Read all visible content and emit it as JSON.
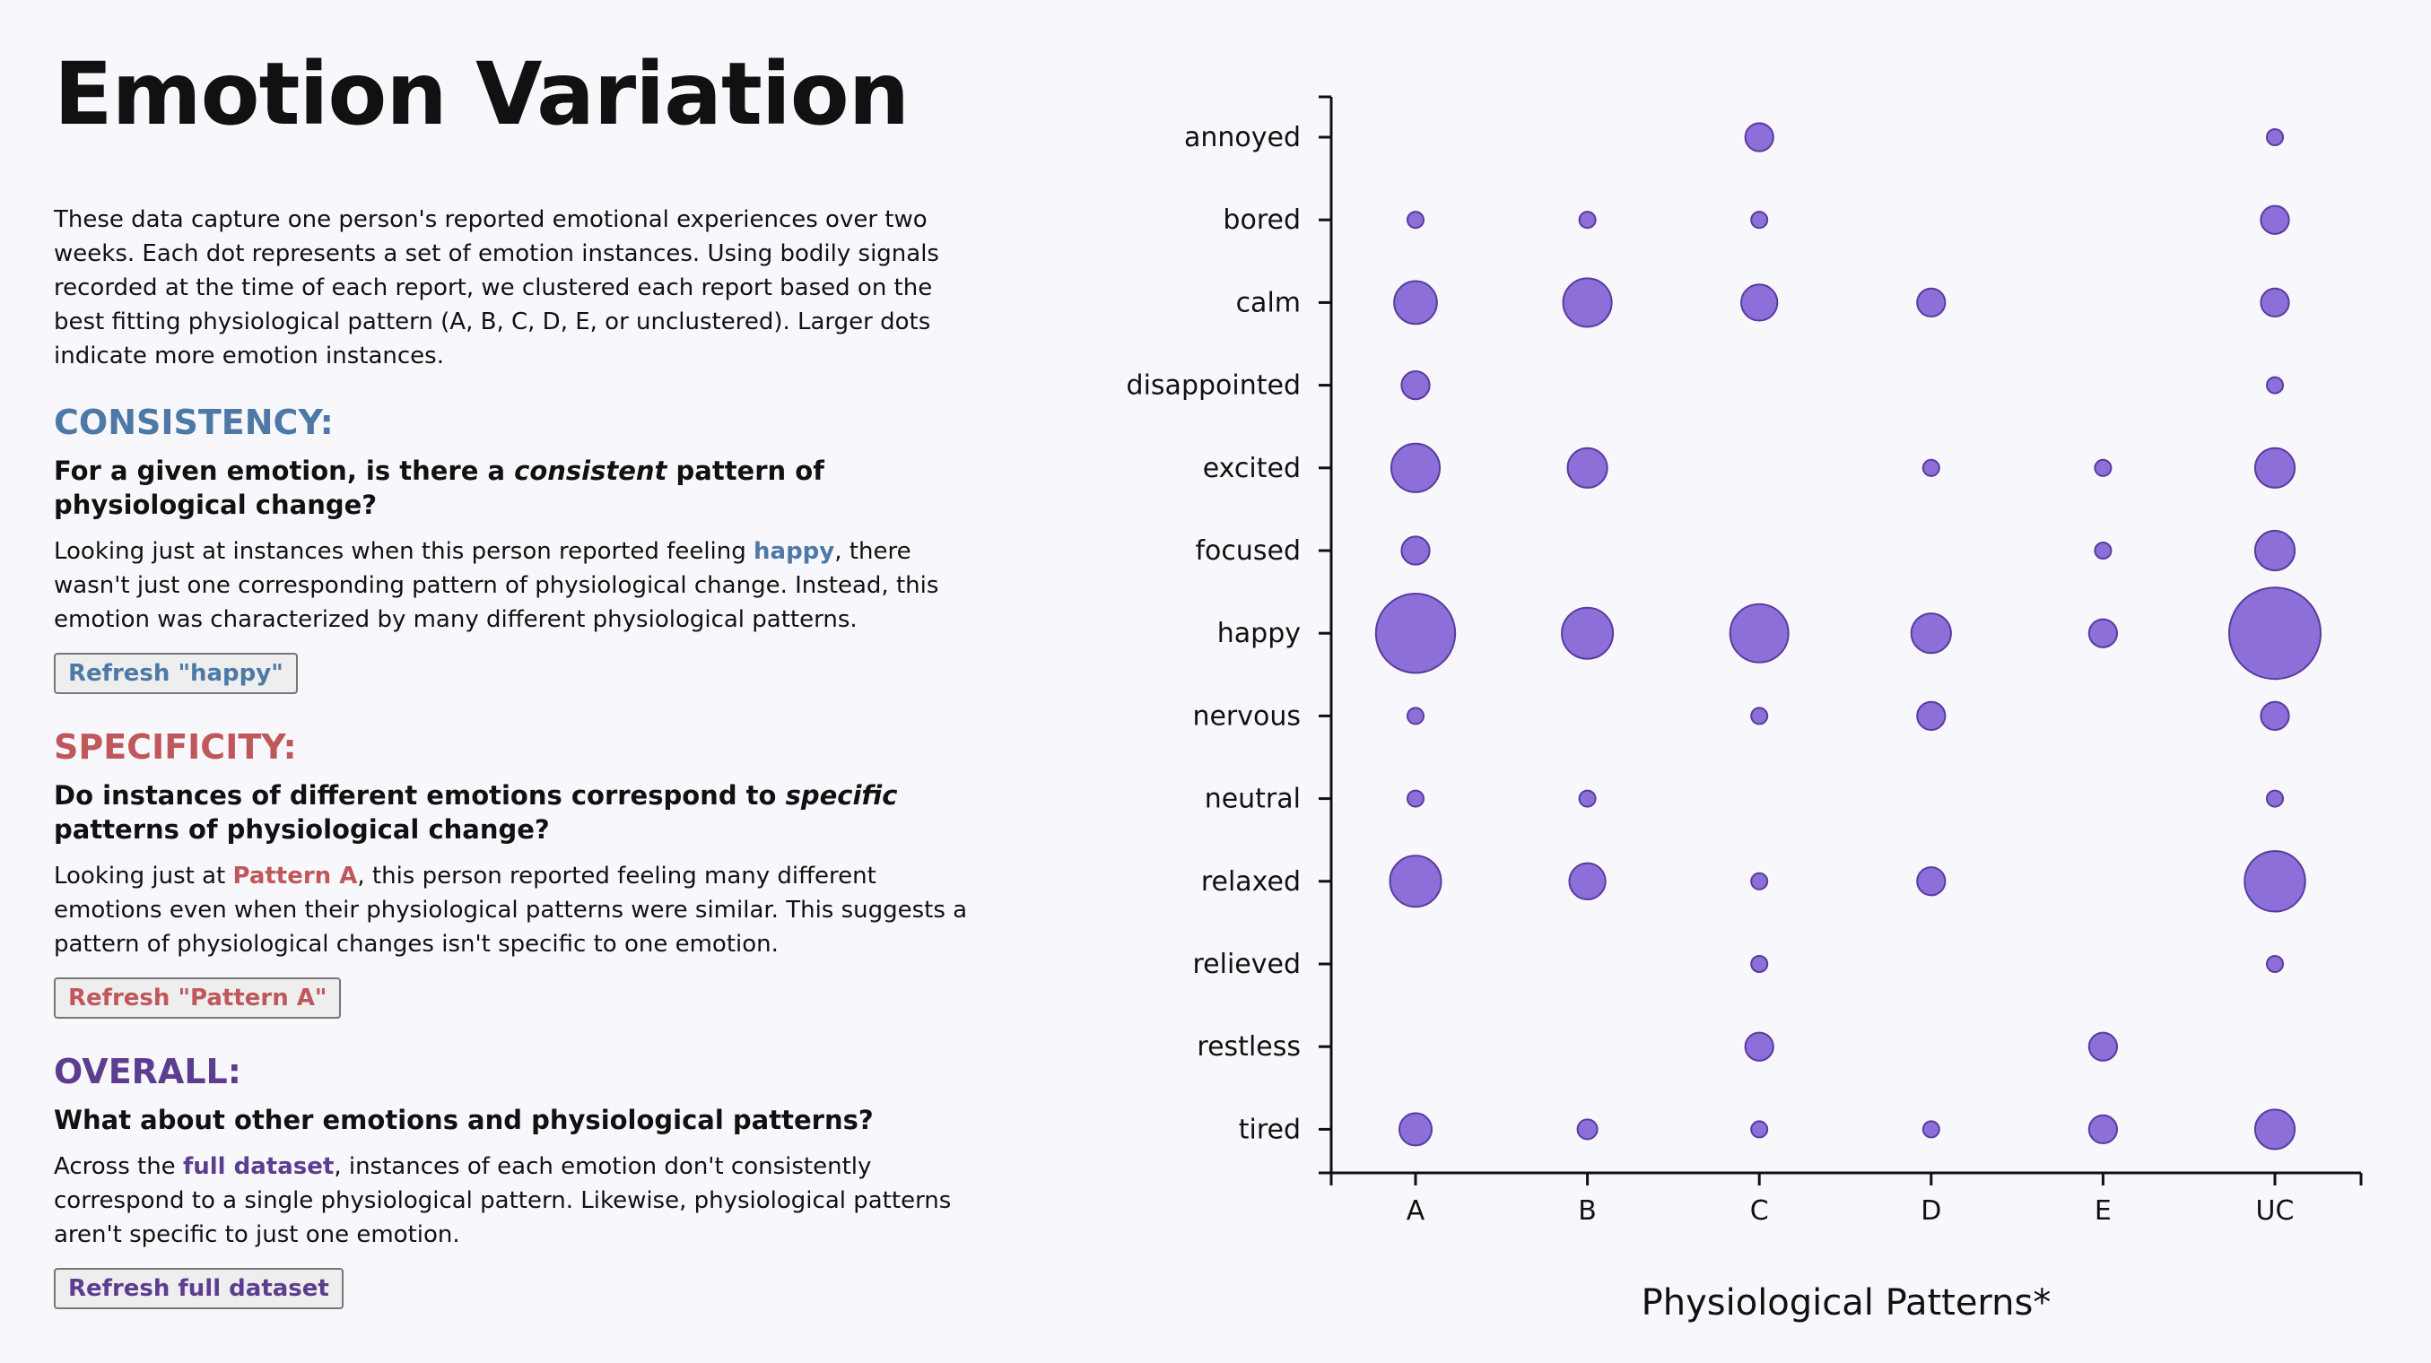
{
  "title": "Emotion Variation",
  "intro": "These data capture one person's reported emotional experiences over two weeks. Each dot represents a set of emotion instances. Using bodily signals recorded at the time of each report, we clustered each report based on the best fitting physiological pattern (A, B, C, D, E, or unclustered). Larger dots indicate more emotion instances.",
  "consistency": {
    "heading": "CONSISTENCY:",
    "question_pre": "For a given emotion, is there a ",
    "question_em": "consistent",
    "question_post": " pattern of physiological change?",
    "body_pre": "Looking just at instances when this person reported feeling ",
    "body_highlight": "happy",
    "body_post": ", there wasn't just one corresponding pattern of physiological change. Instead, this emotion was characterized by many different physiological patterns.",
    "button": "Refresh \"happy\""
  },
  "specificity": {
    "heading": "SPECIFICITY:",
    "question_pre": "Do instances of different emotions correspond to ",
    "question_em": "specific",
    "question_post": " patterns of physiological change?",
    "body_pre": "Looking just at ",
    "body_highlight": "Pattern A",
    "body_post": ", this person reported feeling many different emotions even when their physiological patterns were similar. This suggests a pattern of physiological changes isn't specific to one emotion.",
    "button": "Refresh \"Pattern A\""
  },
  "overall": {
    "heading": "OVERALL:",
    "question": "What about other emotions and physiological patterns?",
    "body_pre": "Across the ",
    "body_highlight": "full dataset",
    "body_post": ", instances of each emotion don't consistently correspond to a single physiological pattern. Likewise, physiological patterns aren't specific to just one emotion.",
    "button": "Refresh full dataset"
  },
  "colors": {
    "consistency": "#4e79a7",
    "specificity": "#c0575b",
    "overall": "#5c3d8f",
    "dot_fill": "#8c6fd8",
    "dot_stroke": "#5a3c9e"
  },
  "chart_data": {
    "type": "scatter",
    "xlabel": "Physiological Patterns*",
    "ylabel": "",
    "x_categories": [
      "A",
      "B",
      "C",
      "D",
      "E",
      "UC"
    ],
    "y_categories": [
      "annoyed",
      "bored",
      "calm",
      "disappointed",
      "excited",
      "focused",
      "happy",
      "nervous",
      "neutral",
      "relaxed",
      "relieved",
      "restless",
      "tired"
    ],
    "size_encoding": "count of emotion instances (relative)",
    "points": [
      {
        "x": "C",
        "y": "annoyed",
        "count": 3
      },
      {
        "x": "UC",
        "y": "annoyed",
        "count": 1
      },
      {
        "x": "A",
        "y": "bored",
        "count": 1
      },
      {
        "x": "B",
        "y": "bored",
        "count": 1
      },
      {
        "x": "C",
        "y": "bored",
        "count": 1
      },
      {
        "x": "UC",
        "y": "bored",
        "count": 3
      },
      {
        "x": "A",
        "y": "calm",
        "count": 7
      },
      {
        "x": "B",
        "y": "calm",
        "count": 9
      },
      {
        "x": "C",
        "y": "calm",
        "count": 5
      },
      {
        "x": "D",
        "y": "calm",
        "count": 3
      },
      {
        "x": "UC",
        "y": "calm",
        "count": 3
      },
      {
        "x": "A",
        "y": "disappointed",
        "count": 3
      },
      {
        "x": "UC",
        "y": "disappointed",
        "count": 1
      },
      {
        "x": "A",
        "y": "excited",
        "count": 9
      },
      {
        "x": "B",
        "y": "excited",
        "count": 6
      },
      {
        "x": "D",
        "y": "excited",
        "count": 1
      },
      {
        "x": "E",
        "y": "excited",
        "count": 1
      },
      {
        "x": "UC",
        "y": "excited",
        "count": 6
      },
      {
        "x": "A",
        "y": "focused",
        "count": 3
      },
      {
        "x": "E",
        "y": "focused",
        "count": 1
      },
      {
        "x": "UC",
        "y": "focused",
        "count": 6
      },
      {
        "x": "A",
        "y": "happy",
        "count": 24
      },
      {
        "x": "B",
        "y": "happy",
        "count": 10
      },
      {
        "x": "C",
        "y": "happy",
        "count": 13
      },
      {
        "x": "D",
        "y": "happy",
        "count": 6
      },
      {
        "x": "E",
        "y": "happy",
        "count": 3
      },
      {
        "x": "UC",
        "y": "happy",
        "count": 32
      },
      {
        "x": "A",
        "y": "nervous",
        "count": 1
      },
      {
        "x": "C",
        "y": "nervous",
        "count": 1
      },
      {
        "x": "D",
        "y": "nervous",
        "count": 3
      },
      {
        "x": "UC",
        "y": "nervous",
        "count": 3
      },
      {
        "x": "A",
        "y": "neutral",
        "count": 1
      },
      {
        "x": "B",
        "y": "neutral",
        "count": 1
      },
      {
        "x": "UC",
        "y": "neutral",
        "count": 1
      },
      {
        "x": "A",
        "y": "relaxed",
        "count": 10
      },
      {
        "x": "B",
        "y": "relaxed",
        "count": 5
      },
      {
        "x": "C",
        "y": "relaxed",
        "count": 1
      },
      {
        "x": "D",
        "y": "relaxed",
        "count": 3
      },
      {
        "x": "UC",
        "y": "relaxed",
        "count": 14
      },
      {
        "x": "C",
        "y": "relieved",
        "count": 1
      },
      {
        "x": "UC",
        "y": "relieved",
        "count": 1
      },
      {
        "x": "C",
        "y": "restless",
        "count": 3
      },
      {
        "x": "E",
        "y": "restless",
        "count": 3
      },
      {
        "x": "A",
        "y": "tired",
        "count": 4
      },
      {
        "x": "B",
        "y": "tired",
        "count": 1.5
      },
      {
        "x": "C",
        "y": "tired",
        "count": 1
      },
      {
        "x": "D",
        "y": "tired",
        "count": 1
      },
      {
        "x": "E",
        "y": "tired",
        "count": 3
      },
      {
        "x": "UC",
        "y": "tired",
        "count": 6
      }
    ]
  }
}
